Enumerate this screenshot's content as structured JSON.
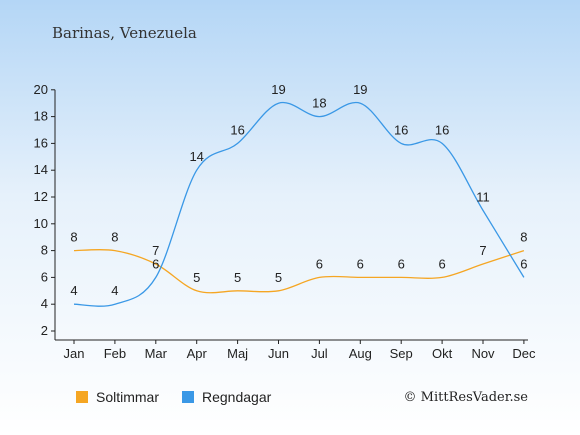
{
  "title": "Barinas, Venezuela",
  "copyright": "© MittResVader.se",
  "colors": {
    "sun": "#f5a623",
    "rain": "#3a98e6"
  },
  "chart_data": {
    "type": "line",
    "title": "Barinas, Venezuela",
    "categories": [
      "Jan",
      "Feb",
      "Mar",
      "Apr",
      "Maj",
      "Jun",
      "Jul",
      "Aug",
      "Sep",
      "Okt",
      "Nov",
      "Dec"
    ],
    "series": [
      {
        "name": "Soltimmar",
        "color": "#f5a623",
        "values": [
          8,
          8,
          7,
          5,
          5,
          5,
          6,
          6,
          6,
          6,
          7,
          8
        ]
      },
      {
        "name": "Regndagar",
        "color": "#3a98e6",
        "values": [
          4,
          4,
          6,
          14,
          16,
          19,
          18,
          19,
          16,
          16,
          11,
          6
        ]
      }
    ],
    "yticks": [
      2,
      4,
      6,
      8,
      10,
      12,
      14,
      16,
      18,
      20
    ],
    "ylim": [
      2,
      20
    ],
    "xlabel": "",
    "ylabel": "",
    "grid": false,
    "legend": "bottom-left"
  }
}
